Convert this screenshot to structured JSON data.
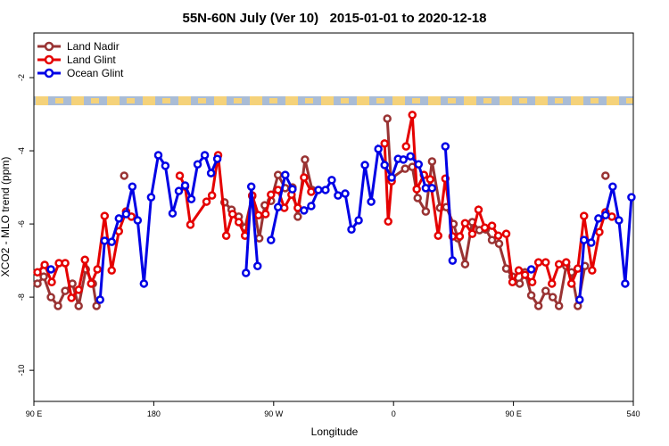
{
  "chart_data": {
    "type": "line",
    "title": "55N-60N July (Ver 10)   2015-01-01 to 2020-12-18",
    "x_label": "Longitude",
    "y_label": "XCO2 - MLO trend (ppm)",
    "xlim": [
      90,
      540
    ],
    "ylim": [
      -10.85,
      -0.78
    ],
    "xticks": [
      {
        "value": 90,
        "label": "90 E"
      },
      180,
      {
        "value": 270,
        "label": "90 W"
      },
      {
        "value": 360,
        "label": "0"
      },
      {
        "value": 450,
        "label": "90 E"
      },
      540
    ],
    "yticks": [
      -2,
      -4,
      -6,
      -8,
      -10
    ],
    "legend": "upper left",
    "series": [
      {
        "name": "Land Nadir",
        "color": "#993333",
        "x": [
          92.7,
          97.4,
          102.8,
          108.1,
          113.5,
          118.9,
          123.6,
          129.0,
          134.3,
          137.0,
          null,
          157.8,
          null,
          233.1,
          238.4,
          243.8,
          248.5,
          253.9,
          259.2,
          263.3,
          268.0,
          273.3,
          278.7,
          284.1,
          288.1,
          293.5,
          298.9,
          null,
          355.3,
          358.0,
          368.7,
          374.1,
          378.1,
          384.2,
          388.9,
          394.9,
          399.6,
          405.0,
          408.3,
          413.7,
          419.1,
          424.5,
          429.2,
          433.9,
          439.2,
          444.6,
          449.3,
          454.7,
          458.7,
          463.4,
          468.8,
          474.2,
          479.5,
          484.2,
          489.6,
          493.6,
          498.3,
          503.7,
          null,
          519.1
        ],
        "values": [
          -7.63,
          -7.44,
          -8.0,
          -8.24,
          -7.83,
          -7.63,
          -8.24,
          -7.24,
          -7.63,
          -8.24,
          null,
          -4.68,
          null,
          -5.41,
          -5.61,
          -5.8,
          -6.1,
          -5.24,
          -6.39,
          -5.49,
          -5.37,
          -4.66,
          -5.02,
          -5.0,
          -5.8,
          -4.24,
          -5.07,
          null,
          -3.12,
          -4.76,
          -4.49,
          -4.44,
          -5.29,
          -5.66,
          -4.29,
          -5.56,
          -5.54,
          -6.0,
          -6.39,
          -7.1,
          -5.95,
          -6.17,
          -6.15,
          -6.44,
          -6.54,
          -7.22,
          -7.44,
          -7.63,
          -7.32,
          -7.95,
          -8.24,
          -7.83,
          -8.0,
          -8.24,
          -7.15,
          -7.32,
          -8.24,
          -7.15,
          null,
          -4.68
        ]
      },
      {
        "name": "Land Glint",
        "color": "#e50000",
        "x": [
          92.7,
          98.1,
          103.4,
          108.8,
          113.5,
          118.2,
          123.6,
          128.3,
          133.0,
          137.7,
          143.1,
          148.4,
          153.8,
          159.2,
          163.2,
          null,
          199.5,
          203.5,
          207.5,
          219.6,
          223.7,
          228.3,
          234.4,
          239.1,
          243.8,
          248.5,
          253.9,
          258.6,
          263.9,
          268.0,
          273.3,
          278.0,
          283.4,
          288.1,
          292.8,
          298.2,
          null,
          353.3,
          356.0,
          358.6,
          null,
          369.4,
          374.1,
          377.4,
          382.8,
          387.5,
          393.5,
          398.9,
          404.3,
          409.7,
          413.7,
          419.1,
          423.8,
          428.5,
          433.9,
          438.6,
          444.6,
          449.3,
          454.0,
          458.7,
          464.1,
          468.8,
          474.2,
          478.9,
          484.2,
          489.6,
          493.6,
          498.3,
          503.0,
          509.1,
          514.5,
          519.1,
          523.9
        ],
        "values": [
          -7.32,
          -7.12,
          -7.59,
          -7.07,
          -7.07,
          -8.02,
          -7.8,
          -6.98,
          -7.63,
          -7.24,
          -5.78,
          -7.27,
          -6.2,
          -5.66,
          -5.8,
          null,
          -4.68,
          -4.98,
          -6.02,
          -5.39,
          -5.22,
          -4.12,
          -6.32,
          -5.73,
          -5.95,
          -6.32,
          -5.22,
          -5.76,
          -5.73,
          -5.2,
          -5.07,
          -5.56,
          -5.2,
          -5.56,
          -4.73,
          -5.12,
          null,
          -3.8,
          -5.93,
          -4.83,
          null,
          -3.88,
          -3.02,
          -5.05,
          -4.66,
          -4.78,
          -6.32,
          -4.76,
          -6.34,
          -6.34,
          -5.98,
          -6.27,
          -5.61,
          -6.1,
          -6.05,
          -6.32,
          -6.27,
          -7.59,
          -7.27,
          -7.39,
          -7.59,
          -7.05,
          -7.05,
          -7.63,
          -7.1,
          -7.05,
          -7.63,
          -7.22,
          -5.78,
          -7.27,
          -6.22,
          -5.68,
          -5.8
        ]
      },
      {
        "name": "Ocean Glint",
        "color": "#0000e5",
        "x": [
          102.8,
          null,
          139.7,
          143.1,
          148.4,
          153.8,
          159.2,
          163.9,
          167.9,
          172.6,
          178.0,
          183.4,
          188.7,
          194.1,
          198.8,
          203.5,
          208.2,
          212.9,
          218.3,
          223.0,
          227.7,
          null,
          249.2,
          253.2,
          257.9,
          null,
          268.0,
          273.3,
          278.7,
          284.1,
          null,
          292.8,
          298.2,
          303.6,
          308.9,
          313.6,
          318.3,
          323.7,
          328.4,
          333.8,
          338.5,
          343.2,
          348.6,
          353.3,
          358.6,
          363.4,
          367.4,
          372.7,
          378.8,
          384.2,
          388.9,
          null,
          398.9,
          404.3,
          null,
          463.4,
          null,
          499.7,
          503.0,
          508.4,
          513.8,
          519.1,
          524.5,
          529.2,
          533.9,
          538.6
        ],
        "values": [
          -7.24,
          null,
          -8.07,
          -6.46,
          -6.49,
          -5.85,
          -5.73,
          -4.98,
          -5.9,
          -7.63,
          -5.27,
          -4.12,
          -4.41,
          -5.71,
          -5.1,
          -4.95,
          -5.32,
          -4.37,
          -4.12,
          -4.61,
          -4.22,
          null,
          -7.34,
          -4.98,
          -7.15,
          null,
          -6.44,
          -5.54,
          -4.66,
          -5.05,
          null,
          -5.63,
          -5.51,
          -5.07,
          -5.07,
          -4.8,
          -5.22,
          -5.17,
          -6.15,
          -5.9,
          -4.39,
          -5.39,
          -3.95,
          -4.39,
          -4.73,
          -4.22,
          -4.24,
          -4.15,
          -4.37,
          -5.02,
          -5.02,
          null,
          -3.88,
          -7.0,
          null,
          -7.24,
          null,
          -8.07,
          -6.44,
          -6.51,
          -5.85,
          -5.76,
          -4.98,
          -5.9,
          -7.63,
          -5.27
        ]
      }
    ]
  }
}
